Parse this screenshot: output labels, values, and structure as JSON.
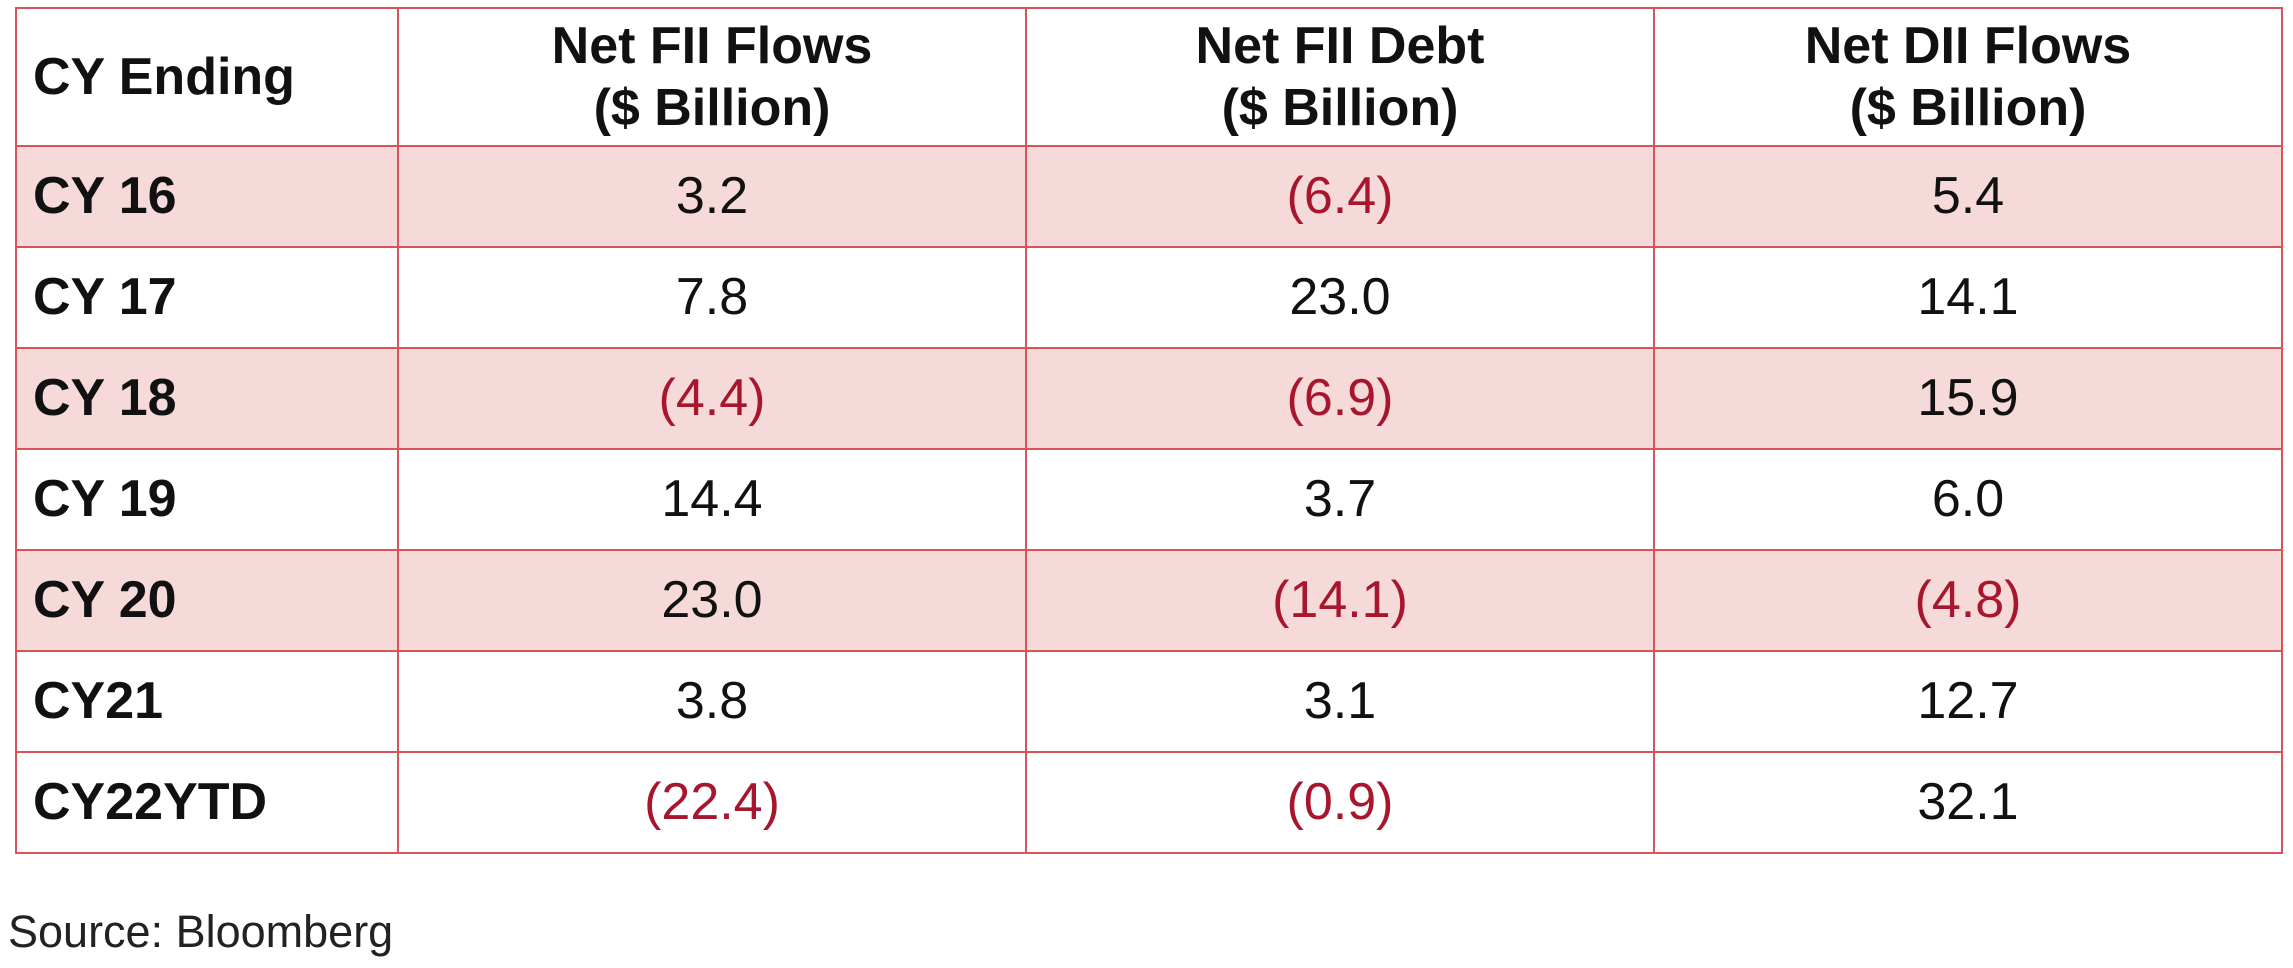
{
  "table": {
    "headers": [
      {
        "line1": "CY Ending",
        "line2": ""
      },
      {
        "line1": "Net FII Flows",
        "line2": "($ Billion)"
      },
      {
        "line1": "Net FII Debt",
        "line2": "($ Billion)"
      },
      {
        "line1": "Net DII Flows",
        "line2": "($ Billion)"
      }
    ],
    "rows": [
      {
        "label": "CY 16",
        "shaded": true,
        "cells": [
          {
            "text": "3.2",
            "negative": false
          },
          {
            "text": "(6.4)",
            "negative": true
          },
          {
            "text": "5.4",
            "negative": false
          }
        ]
      },
      {
        "label": "CY 17",
        "shaded": false,
        "cells": [
          {
            "text": "7.8",
            "negative": false
          },
          {
            "text": "23.0",
            "negative": false
          },
          {
            "text": "14.1",
            "negative": false
          }
        ]
      },
      {
        "label": "CY 18",
        "shaded": true,
        "cells": [
          {
            "text": "(4.4)",
            "negative": true
          },
          {
            "text": "(6.9)",
            "negative": true
          },
          {
            "text": "15.9",
            "negative": false
          }
        ]
      },
      {
        "label": "CY 19",
        "shaded": false,
        "cells": [
          {
            "text": "14.4",
            "negative": false
          },
          {
            "text": "3.7",
            "negative": false
          },
          {
            "text": "6.0",
            "negative": false
          }
        ]
      },
      {
        "label": "CY 20",
        "shaded": true,
        "cells": [
          {
            "text": "23.0",
            "negative": false
          },
          {
            "text": "(14.1)",
            "negative": true
          },
          {
            "text": "(4.8)",
            "negative": true
          }
        ]
      },
      {
        "label": "CY21",
        "shaded": false,
        "cells": [
          {
            "text": "3.8",
            "negative": false
          },
          {
            "text": "3.1",
            "negative": false
          },
          {
            "text": "12.7",
            "negative": false
          }
        ]
      },
      {
        "label": "CY22YTD",
        "shaded": false,
        "cells": [
          {
            "text": "(22.4)",
            "negative": true
          },
          {
            "text": "(0.9)",
            "negative": true
          },
          {
            "text": "32.1",
            "negative": false
          }
        ]
      }
    ]
  },
  "source_note": "Source: Bloomberg",
  "colors": {
    "border": "#d9545a",
    "shaded_row": "#f6dad9",
    "negative_text": "#a8162d",
    "text": "#111111"
  }
}
